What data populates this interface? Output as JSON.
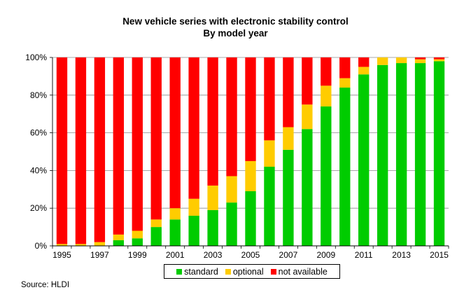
{
  "chart_data": {
    "type": "bar",
    "stacked": true,
    "title": "New vehicle series with electronic stability control",
    "subtitle": "By model year",
    "xlabel": "",
    "ylabel": "",
    "ylim": [
      0,
      100
    ],
    "yticks": [
      "0%",
      "20%",
      "40%",
      "60%",
      "80%",
      "100%"
    ],
    "categories": [
      "1995",
      "1996",
      "1997",
      "1998",
      "1999",
      "2000",
      "2001",
      "2002",
      "2003",
      "2004",
      "2005",
      "2006",
      "2007",
      "2008",
      "2009",
      "2010",
      "2011",
      "2012",
      "2013",
      "2014",
      "2015"
    ],
    "xtick_labels": [
      "1995",
      "",
      "1997",
      "",
      "1999",
      "",
      "2001",
      "",
      "2003",
      "",
      "2005",
      "",
      "2007",
      "",
      "2009",
      "",
      "2011",
      "",
      "2013",
      "",
      "2015"
    ],
    "series": [
      {
        "name": "standard",
        "color": "#00cc00",
        "values": [
          0,
          0,
          0,
          3,
          4,
          10,
          14,
          16,
          19,
          23,
          29,
          42,
          51,
          62,
          74,
          84,
          91,
          96,
          97,
          97,
          98
        ]
      },
      {
        "name": "optional",
        "color": "#ffcc00",
        "values": [
          1,
          1,
          2,
          3,
          4,
          4,
          6,
          9,
          13,
          14,
          16,
          14,
          12,
          13,
          11,
          5,
          4,
          4,
          3,
          2,
          1
        ]
      },
      {
        "name": "not available",
        "color": "#ff0000",
        "values": [
          99,
          99,
          98,
          94,
          92,
          86,
          80,
          75,
          68,
          63,
          55,
          44,
          37,
          25,
          15,
          11,
          5,
          0,
          0,
          1,
          1
        ]
      }
    ],
    "grid": "horizontal",
    "legend": "bottom"
  },
  "source": "Source: HLDI"
}
